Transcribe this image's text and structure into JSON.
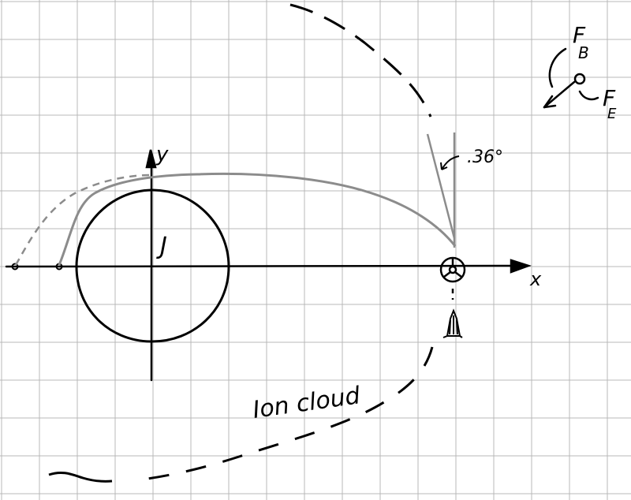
{
  "labels": {
    "y_axis": "y",
    "x_axis": "x",
    "planet": "J",
    "angle": ".36°",
    "force_b_main": "F",
    "force_b_sub": "B",
    "force_e_main": "F",
    "force_e_sub": "E",
    "cloud": "Ion cloud"
  },
  "colors": {
    "grid": "#b9b9b9",
    "ink": "#000000",
    "trajectory": "#8c8c8c"
  }
}
